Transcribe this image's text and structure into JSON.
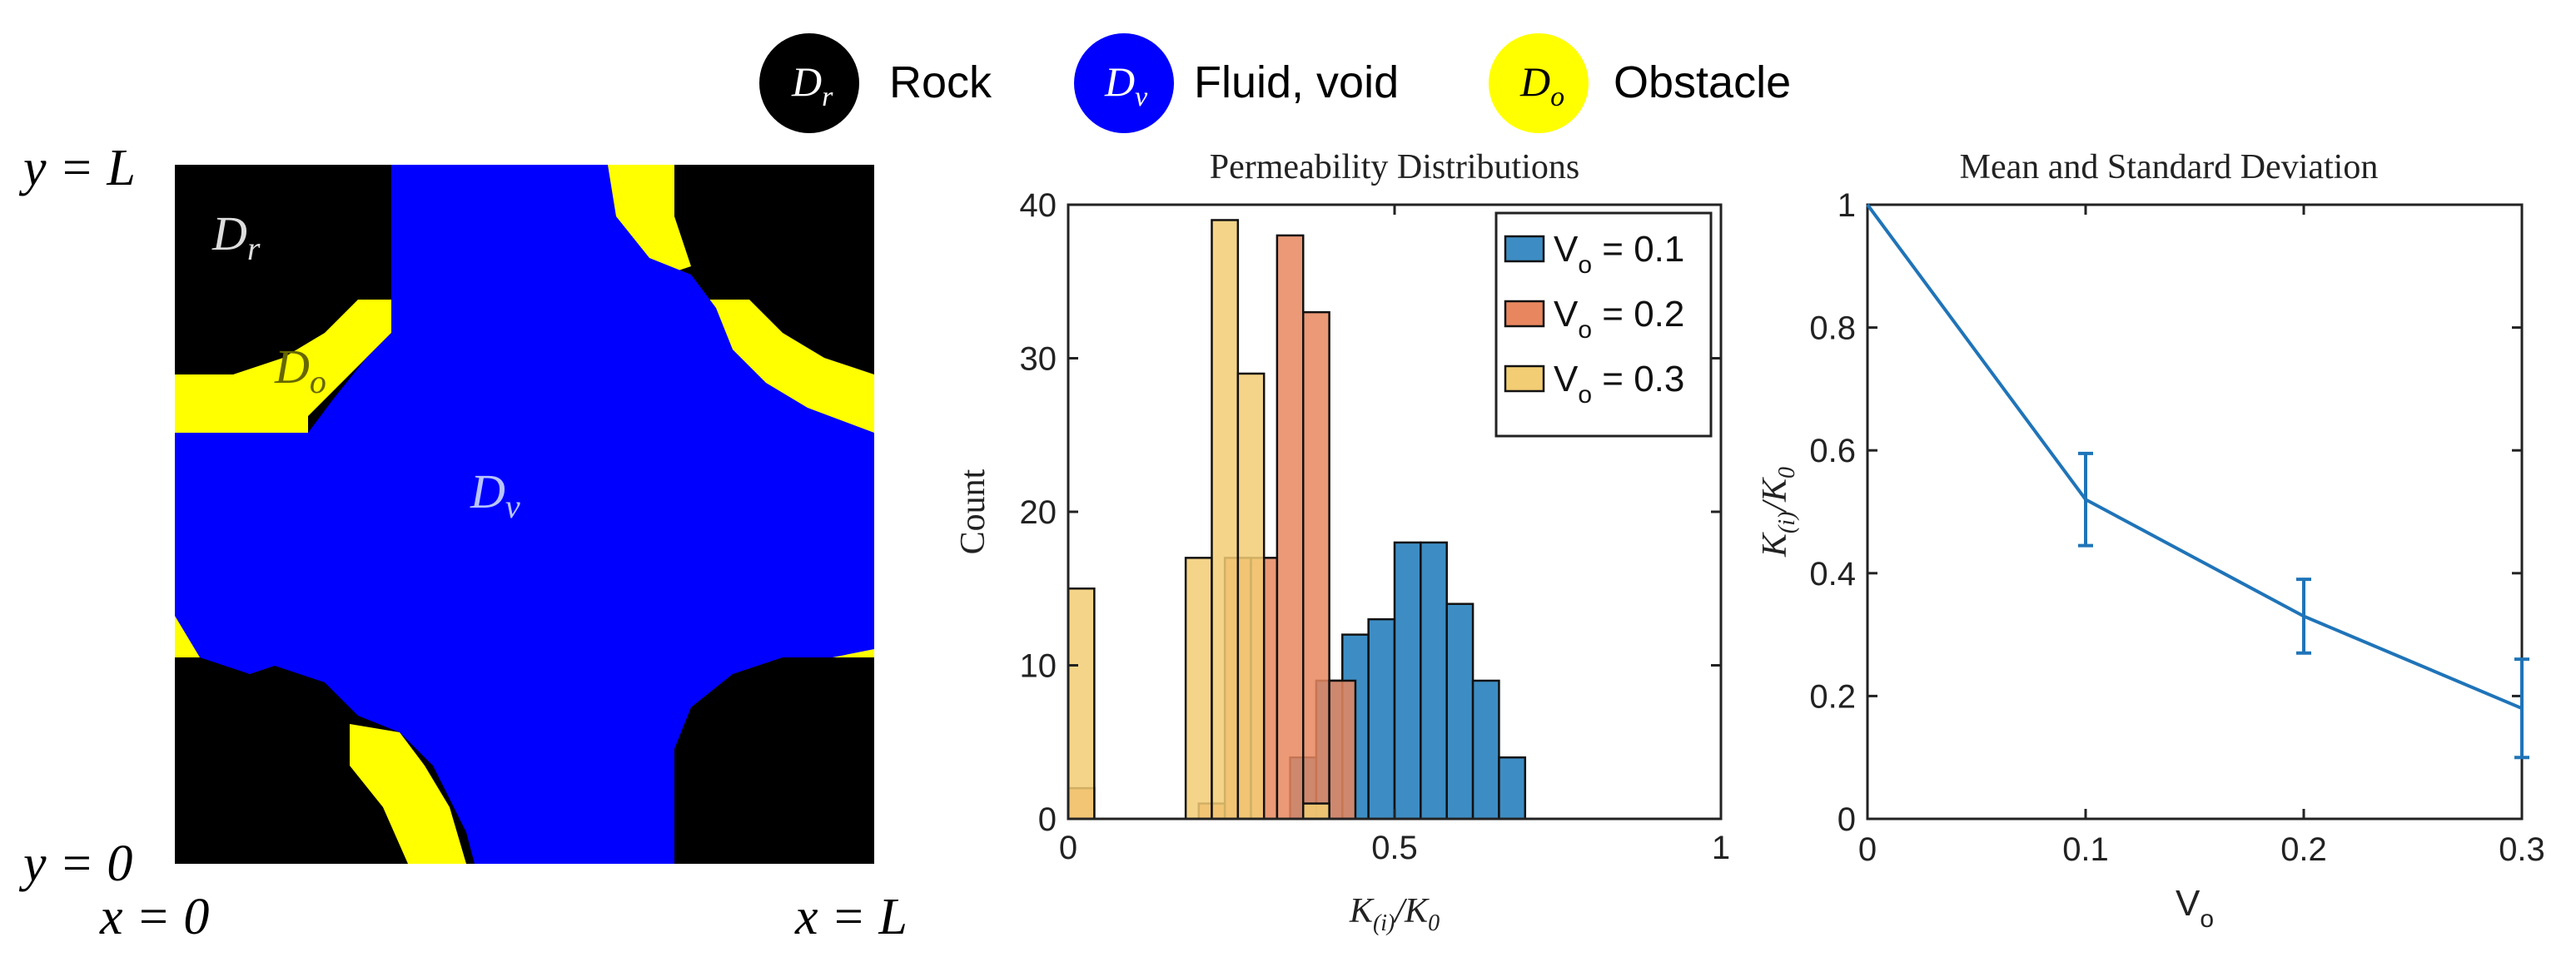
{
  "legend": {
    "items": [
      {
        "sym": "D",
        "sub": "r",
        "label": "Rock",
        "color": "#000000",
        "text_color": "#ffffff"
      },
      {
        "sym": "D",
        "sub": "v",
        "label": "Fluid, void",
        "color": "#0000ff",
        "text_color": "#ffffff"
      },
      {
        "sym": "D",
        "sub": "o",
        "label": "Obstacle",
        "color": "#ffff00",
        "text_color": "#000000"
      }
    ]
  },
  "domain": {
    "y_top": "y = L",
    "y_bottom": "y = 0",
    "x_left": "x = 0",
    "x_right": "x = L",
    "label_rock": {
      "sym": "D",
      "sub": "r"
    },
    "label_obstacle": {
      "sym": "D",
      "sub": "o"
    },
    "label_void": {
      "sym": "D",
      "sub": "v"
    },
    "colors": {
      "rock": "#000000",
      "void": "#0000ff",
      "obstacle": "#ffff00"
    }
  },
  "chart_data": [
    {
      "type": "bar",
      "title": "Permeability Distributions",
      "xlabel": "K(i)/K0",
      "ylabel": "Count",
      "xlim": [
        0,
        1
      ],
      "ylim": [
        0,
        40
      ],
      "xticks": [
        "0",
        "0.5",
        "1"
      ],
      "yticks": [
        "0",
        "10",
        "20",
        "30",
        "40"
      ],
      "bin_width": 0.04,
      "legend_position": "top-right",
      "series": [
        {
          "name": "V",
          "sub": "o",
          "suffix": " = 0.1",
          "color": "#3d8dc4",
          "bins": [
            [
              0.34,
              4
            ],
            [
              0.38,
              9
            ],
            [
              0.42,
              12
            ],
            [
              0.46,
              13
            ],
            [
              0.5,
              18
            ],
            [
              0.54,
              18
            ],
            [
              0.58,
              14
            ],
            [
              0.62,
              9
            ],
            [
              0.66,
              4
            ]
          ]
        },
        {
          "name": "V",
          "sub": "o",
          "suffix": " = 0.2",
          "color": "#e8875f",
          "bins": [
            [
              0.0,
              2
            ],
            [
              0.2,
              1
            ],
            [
              0.24,
              17
            ],
            [
              0.28,
              17
            ],
            [
              0.32,
              38
            ],
            [
              0.36,
              33
            ],
            [
              0.4,
              9
            ]
          ]
        },
        {
          "name": "V",
          "sub": "o",
          "suffix": " = 0.3",
          "color": "#f2cd73",
          "bins": [
            [
              0.0,
              15
            ],
            [
              0.18,
              17
            ],
            [
              0.22,
              39
            ],
            [
              0.26,
              29
            ],
            [
              0.36,
              1
            ]
          ]
        }
      ]
    },
    {
      "type": "line",
      "title": "Mean and Standard Deviation",
      "xlabel": "V",
      "xlabel_sub": "o",
      "ylabel": "K(i)/K0",
      "xlim": [
        0,
        0.3
      ],
      "ylim": [
        0,
        1
      ],
      "xticks": [
        "0",
        "0.1",
        "0.2",
        "0.3"
      ],
      "yticks": [
        "0",
        "0.2",
        "0.4",
        "0.6",
        "0.8",
        "1"
      ],
      "color": "#1f74b8",
      "series": [
        {
          "name": "mean",
          "x": [
            0,
            0.1,
            0.2,
            0.3
          ],
          "y": [
            1.0,
            0.52,
            0.33,
            0.18
          ],
          "err": [
            0,
            0.075,
            0.06,
            0.08
          ]
        }
      ]
    }
  ]
}
